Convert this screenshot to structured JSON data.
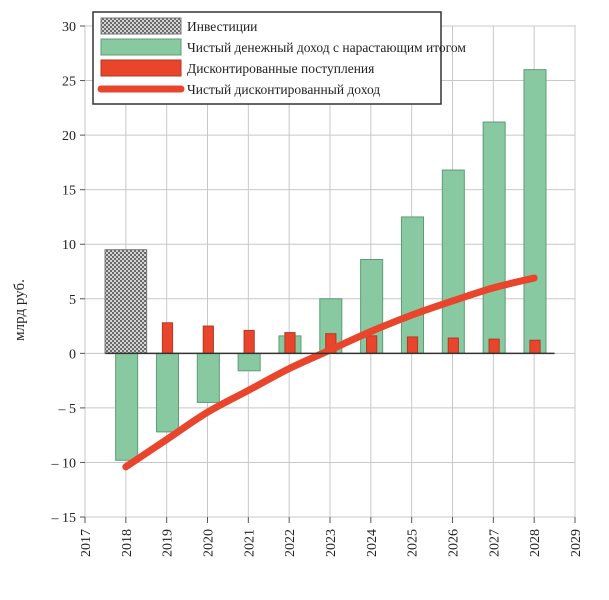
{
  "chart_data": {
    "type": "bar",
    "title": "",
    "xlabel": "",
    "ylabel": "млрд руб.",
    "x_ticks": [
      "2017",
      "2018",
      "2019",
      "2020",
      "2021",
      "2022",
      "2023",
      "2024",
      "2025",
      "2026",
      "2027",
      "2028",
      "2029"
    ],
    "xlim": [
      2017,
      2029
    ],
    "y_ticks": [
      "30",
      "25",
      "20",
      "15",
      "10",
      "5",
      "0",
      "– 5",
      "– 10",
      "– 15"
    ],
    "y_tick_values": [
      30,
      25,
      20,
      15,
      10,
      5,
      0,
      -5,
      -10,
      -15
    ],
    "ylim": [
      -15,
      30
    ],
    "grid": true,
    "legend_position": "top",
    "years": [
      2018,
      2019,
      2020,
      2021,
      2022,
      2023,
      2024,
      2025,
      2026,
      2027,
      2028
    ],
    "series": [
      {
        "name": "Инвестиции",
        "kind": "hatched-bar",
        "color": "#bdbdbd",
        "points": [
          {
            "x": 2018,
            "y": 9.5
          }
        ]
      },
      {
        "name": "Чистый денежный доход с нарастающим итогом",
        "kind": "bar",
        "color": "#88c9a1",
        "values": [
          -9.8,
          -7.2,
          -4.5,
          -1.6,
          1.6,
          5.0,
          8.6,
          12.5,
          16.8,
          21.2,
          26.0
        ]
      },
      {
        "name": "Дисконтированные поступления",
        "kind": "bar",
        "color": "#e8452c",
        "values": [
          0.0,
          2.8,
          2.5,
          2.1,
          1.9,
          1.8,
          1.6,
          1.5,
          1.4,
          1.3,
          1.2
        ]
      },
      {
        "name": "Чистый дисконтированный доход",
        "kind": "line",
        "color": "#e8452c",
        "values": [
          -10.4,
          -7.9,
          -5.4,
          -3.4,
          -1.4,
          0.3,
          2.0,
          3.5,
          4.8,
          6.0,
          6.9
        ]
      }
    ]
  }
}
